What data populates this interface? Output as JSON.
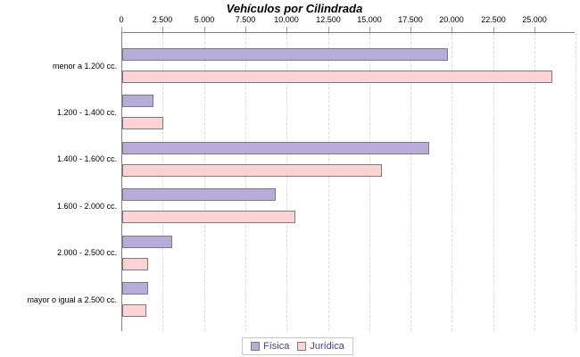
{
  "title": "Vehículos por Cilindrada",
  "chart_data": {
    "type": "bar",
    "orientation": "horizontal",
    "title": "Vehículos por Cilindrada",
    "categories": [
      "menor a 1.200 cc.",
      "1.200 - 1.400 cc.",
      "1.400 - 1.600 cc.",
      "1.600 - 2.000 cc.",
      "2.000 - 2.500 cc.",
      "mayor o igual a 2.500 cc."
    ],
    "series": [
      {
        "name": "Física",
        "color": "#b6abd9",
        "values": [
          19700,
          1900,
          18600,
          9300,
          3030,
          1570
        ]
      },
      {
        "name": "Jurídica",
        "color": "#fdd2d3",
        "values": [
          26000,
          2480,
          15700,
          10500,
          1570,
          1450
        ]
      }
    ],
    "x_axis": {
      "min": 0,
      "max": 27500,
      "tick_interval": 2500,
      "tick_labels": [
        "0",
        "2.500",
        "5.000",
        "7.500",
        "10.000",
        "12.500",
        "15.000",
        "17.500",
        "20.000",
        "22.500",
        "25.000"
      ]
    },
    "grid": {
      "vertical_dashed": true
    },
    "legend_position": "bottom-center"
  },
  "colors": {
    "bar_border": "#7b7b7b",
    "axis_line": "#808080",
    "grid_line": "#d9d9d9",
    "legend_text": "#483d8b",
    "legend_border": "#c9c9c9",
    "text": "#000000"
  }
}
